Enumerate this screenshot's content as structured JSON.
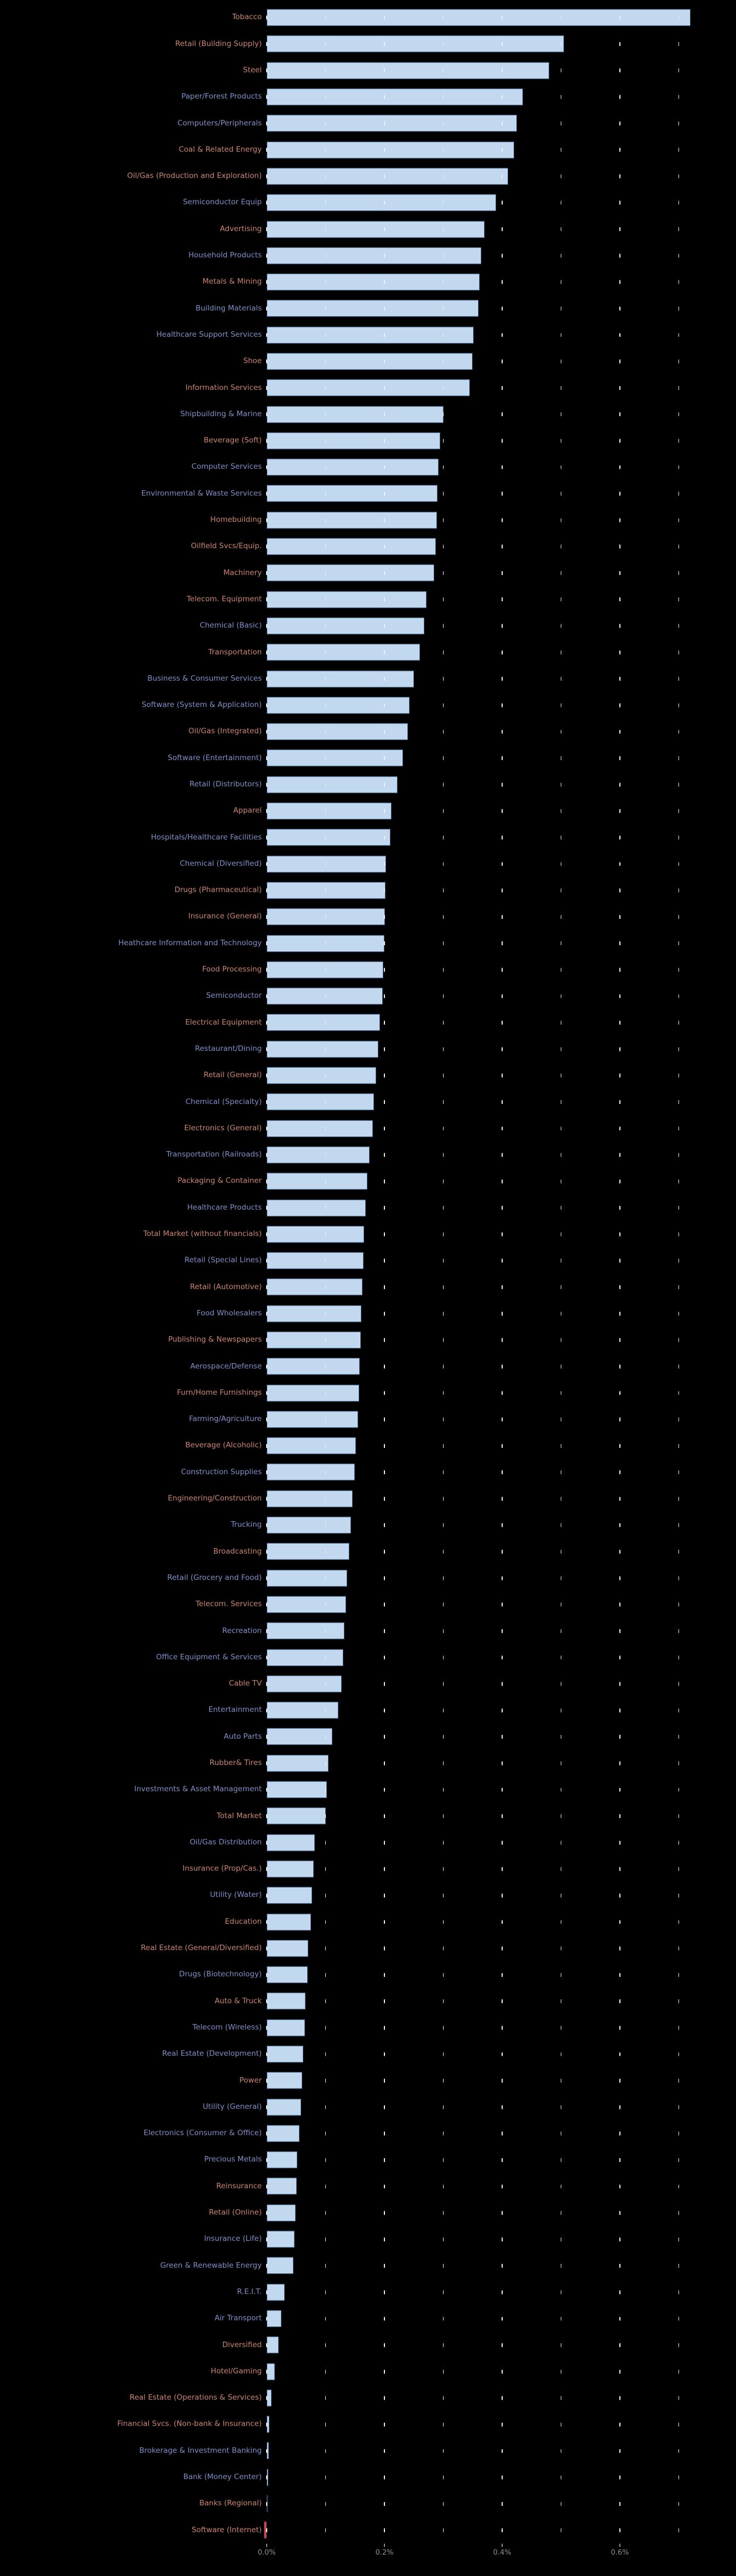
{
  "chart_data": {
    "type": "bar",
    "orientation": "horizontal",
    "title": "",
    "xlabel": "",
    "ylabel": "",
    "units": "percent",
    "xlim": [
      -0.01,
      0.79
    ],
    "grid": true,
    "grid_style": "dashed",
    "grid_x": [
      0.0,
      0.1,
      0.2,
      0.3,
      0.4,
      0.5,
      0.6,
      0.7
    ],
    "x_tick_values": [
      0.0,
      0.2,
      0.4,
      0.6
    ],
    "x_tick_labels": [
      "0.0%",
      "0.2%",
      "0.4%",
      "0.6%"
    ],
    "categories": [
      "Tobacco",
      "Retail (Building Supply)",
      "Steel",
      "Paper/Forest Products",
      "Computers/Peripherals",
      "Coal & Related Energy",
      "Oil/Gas (Production and Exploration)",
      "Semiconductor Equip",
      "Advertising",
      "Household Products",
      "Metals & Mining",
      "Building Materials",
      "Healthcare Support Services",
      "Shoe",
      "Information Services",
      "Shipbuilding & Marine",
      "Beverage (Soft)",
      "Computer Services",
      "Environmental & Waste Services",
      "Homebuilding",
      "Oilfield Svcs/Equip.",
      "Machinery",
      "Telecom. Equipment",
      "Chemical (Basic)",
      "Transportation",
      "Business & Consumer Services",
      "Software (System & Application)",
      "Oil/Gas (Integrated)",
      "Software (Entertainment)",
      "Retail (Distributors)",
      "Apparel",
      "Hospitals/Healthcare Facilities",
      "Chemical (Diversified)",
      "Drugs (Pharmaceutical)",
      "Insurance (General)",
      "Heathcare Information and Technology",
      "Food Processing",
      "Semiconductor",
      "Electrical Equipment",
      "Restaurant/Dining",
      "Retail (General)",
      "Chemical (Specialty)",
      "Electronics (General)",
      "Transportation (Railroads)",
      "Packaging & Container",
      "Healthcare Products",
      "Total Market (without financials)",
      "Retail (Special Lines)",
      "Retail (Automotive)",
      "Food Wholesalers",
      "Publishing & Newspapers",
      "Aerospace/Defense",
      "Furn/Home Furnishings",
      "Farming/Agriculture",
      "Beverage (Alcoholic)",
      "Construction Supplies",
      "Engineering/Construction",
      "Trucking",
      "Broadcasting",
      "Retail (Grocery and Food)",
      "Telecom. Services",
      "Recreation",
      "Office Equipment & Services",
      "Cable TV",
      "Entertainment",
      "Auto Parts",
      "Rubber& Tires",
      "Investments & Asset Management",
      "Total Market",
      "Oil/Gas Distribution",
      "Insurance (Prop/Cas.)",
      "Utility (Water)",
      "Education",
      "Real Estate (General/Diversified)",
      "Drugs (Biotechnology)",
      "Auto & Truck",
      "Telecom (Wireless)",
      "Real Estate (Development)",
      "Power",
      "Utility (General)",
      "Electronics (Consumer & Office)",
      "Precious Metals",
      "Reinsurance",
      "Retail (Online)",
      "Insurance (Life)",
      "Green & Renewable Energy",
      "R.E.I.T.",
      "Air Transport",
      "Diversified",
      "Hotel/Gaming",
      "Real Estate (Operations & Services)",
      "Financial Svcs. (Non-bank & Insurance)",
      "Brokerage & Investment Banking",
      "Bank (Money Center)",
      "Banks (Regional)",
      "Software (Internet)"
    ],
    "values": [
      0.72,
      0.505,
      0.48,
      0.435,
      0.425,
      0.42,
      0.41,
      0.39,
      0.37,
      0.365,
      0.362,
      0.36,
      0.352,
      0.35,
      0.345,
      0.3,
      0.295,
      0.292,
      0.29,
      0.289,
      0.287,
      0.285,
      0.272,
      0.268,
      0.26,
      0.25,
      0.243,
      0.24,
      0.232,
      0.222,
      0.212,
      0.21,
      0.203,
      0.202,
      0.201,
      0.2,
      0.198,
      0.197,
      0.193,
      0.19,
      0.186,
      0.182,
      0.18,
      0.175,
      0.171,
      0.168,
      0.166,
      0.165,
      0.163,
      0.161,
      0.16,
      0.158,
      0.157,
      0.155,
      0.152,
      0.15,
      0.146,
      0.143,
      0.14,
      0.137,
      0.135,
      0.132,
      0.13,
      0.127,
      0.122,
      0.112,
      0.105,
      0.102,
      0.1,
      0.082,
      0.08,
      0.077,
      0.075,
      0.071,
      0.07,
      0.066,
      0.065,
      0.062,
      0.06,
      0.059,
      0.056,
      0.052,
      0.051,
      0.049,
      0.047,
      0.046,
      0.031,
      0.025,
      0.02,
      0.014,
      0.008,
      0.005,
      0.004,
      0.003,
      0.002,
      -0.005
    ],
    "label_colors": [
      "salmon",
      "salmon",
      "salmon",
      "blue",
      "blue",
      "salmon",
      "salmon",
      "blue",
      "salmon",
      "blue",
      "salmon",
      "blue",
      "blue",
      "salmon",
      "salmon",
      "blue",
      "salmon",
      "blue",
      "blue",
      "salmon",
      "salmon",
      "salmon",
      "salmon",
      "blue",
      "salmon",
      "blue",
      "blue",
      "salmon",
      "blue",
      "blue",
      "salmon",
      "blue",
      "blue",
      "salmon",
      "salmon",
      "blue",
      "salmon",
      "blue",
      "salmon",
      "blue",
      "salmon",
      "blue",
      "salmon",
      "blue",
      "salmon",
      "blue",
      "salmon",
      "blue",
      "salmon",
      "blue",
      "salmon",
      "blue",
      "salmon",
      "blue",
      "salmon",
      "blue",
      "salmon",
      "blue",
      "salmon",
      "blue",
      "salmon",
      "blue",
      "blue",
      "salmon",
      "blue",
      "blue",
      "salmon",
      "blue",
      "salmon",
      "blue",
      "salmon",
      "blue",
      "salmon",
      "salmon",
      "blue",
      "salmon",
      "blue",
      "blue",
      "salmon",
      "blue",
      "blue",
      "blue",
      "salmon",
      "salmon",
      "blue",
      "blue",
      "blue",
      "blue",
      "salmon",
      "salmon",
      "salmon",
      "salmon",
      "blue",
      "blue",
      "salmon",
      "salmon"
    ],
    "colors": {
      "background": "#000000",
      "bar_fill": "#c2d8ee",
      "bar_edge": "#2f5075",
      "negative_bar_fill": "#c44e52",
      "negative_bar_edge": "#7d2f33",
      "label_blue": "#8090c8",
      "label_salmon": "#cc8570",
      "tick_label": "#8f8f8f",
      "gridline": "#f0f0f0"
    }
  }
}
